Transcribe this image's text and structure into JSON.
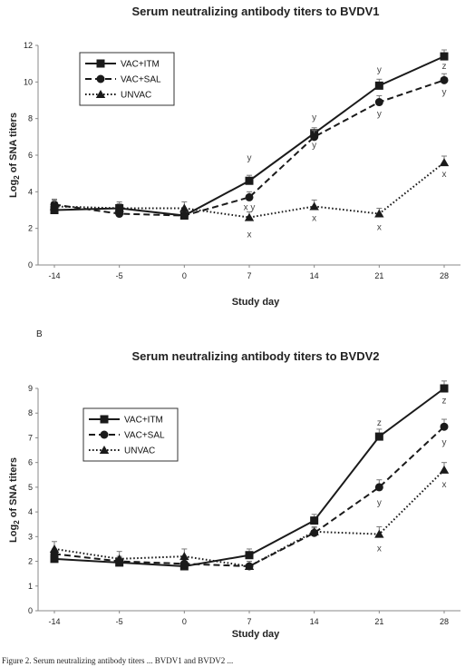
{
  "caption_fragment": "Figure 2. Serum neutralizing antibody titers ... BVDV1 and BVDV2 ...",
  "chart_data": [
    {
      "type": "line",
      "panel": "",
      "title": "Serum neutralizing antibody titers to BVDV1",
      "xlabel": "Study day",
      "ylabel": "Log2 of SNA titers",
      "ylabel_main": "Log",
      "ylabel_sub": "2",
      "ylabel_rest": " of SNA titers",
      "x": [
        -14,
        -5,
        0,
        7,
        14,
        21,
        28
      ],
      "x_tick_labels": [
        "-14",
        "-5",
        "0",
        "7",
        "14",
        "21",
        "28"
      ],
      "ylim": [
        0,
        12
      ],
      "y_ticks": [
        0,
        2,
        4,
        6,
        8,
        10,
        12
      ],
      "legend_position": "top-left",
      "series": [
        {
          "name": "VAC+ITM",
          "marker": "square",
          "line": "solid",
          "values": [
            3.0,
            3.1,
            2.7,
            4.6,
            7.2,
            9.8,
            11.4
          ],
          "errors": [
            0.25,
            0.25,
            0.2,
            0.3,
            0.3,
            0.35,
            0.35
          ]
        },
        {
          "name": "VAC+SAL",
          "marker": "circle",
          "line": "dashed",
          "values": [
            3.3,
            2.8,
            2.7,
            3.7,
            7.0,
            8.9,
            10.1
          ],
          "errors": [
            0.3,
            0.25,
            0.2,
            0.3,
            0.35,
            0.35,
            0.35
          ]
        },
        {
          "name": "UNVAC",
          "marker": "triangle",
          "line": "dotted",
          "values": [
            3.2,
            3.1,
            3.1,
            2.6,
            3.2,
            2.8,
            5.6
          ],
          "errors": [
            0.35,
            0.35,
            0.35,
            0.3,
            0.35,
            0.3,
            0.35
          ]
        }
      ],
      "annotations": [
        {
          "x": 7,
          "y": 5.9,
          "text": "y"
        },
        {
          "x": 7,
          "y": 3.2,
          "text": "x y"
        },
        {
          "x": 7,
          "y": 1.7,
          "text": "x"
        },
        {
          "x": 14,
          "y": 8.1,
          "text": "y"
        },
        {
          "x": 14,
          "y": 6.6,
          "text": "y"
        },
        {
          "x": 14,
          "y": 2.6,
          "text": "x"
        },
        {
          "x": 21,
          "y": 10.7,
          "text": "y"
        },
        {
          "x": 21,
          "y": 8.3,
          "text": "y"
        },
        {
          "x": 21,
          "y": 2.1,
          "text": "x"
        },
        {
          "x": 28,
          "y": 10.9,
          "text": "z"
        },
        {
          "x": 28,
          "y": 9.5,
          "text": "y"
        },
        {
          "x": 28,
          "y": 5.0,
          "text": "x"
        }
      ]
    },
    {
      "type": "line",
      "panel": "B",
      "title": "Serum neutralizing antibody titers to BVDV2",
      "xlabel": "Study day",
      "ylabel": "Log2 of SNA titers",
      "ylabel_main": "Log",
      "ylabel_sub": "2",
      "ylabel_rest": " of SNA titers",
      "x": [
        -14,
        -5,
        0,
        7,
        14,
        21,
        28
      ],
      "x_tick_labels": [
        "-14",
        "-5",
        "0",
        "7",
        "14",
        "21",
        "28"
      ],
      "ylim": [
        0,
        9
      ],
      "y_ticks": [
        0,
        1,
        2,
        3,
        4,
        5,
        6,
        7,
        8,
        9
      ],
      "legend_position": "top-left",
      "series": [
        {
          "name": "VAC+ITM",
          "marker": "square",
          "line": "solid",
          "values": [
            2.1,
            1.95,
            1.8,
            2.25,
            3.65,
            7.05,
            9.0
          ],
          "errors": [
            0.2,
            0.2,
            0.15,
            0.25,
            0.25,
            0.3,
            0.3
          ]
        },
        {
          "name": "VAC+SAL",
          "marker": "circle",
          "line": "dashed",
          "values": [
            2.3,
            2.0,
            1.9,
            1.8,
            3.15,
            5.0,
            7.45
          ],
          "errors": [
            0.2,
            0.2,
            0.2,
            0.2,
            0.2,
            0.3,
            0.3
          ]
        },
        {
          "name": "UNVAC",
          "marker": "triangle",
          "line": "dotted",
          "values": [
            2.5,
            2.1,
            2.2,
            1.8,
            3.2,
            3.1,
            5.7
          ],
          "errors": [
            0.3,
            0.3,
            0.3,
            0.2,
            0.2,
            0.3,
            0.3
          ]
        }
      ],
      "annotations": [
        {
          "x": 21,
          "y": 7.65,
          "text": "z"
        },
        {
          "x": 21,
          "y": 4.4,
          "text": "y"
        },
        {
          "x": 21,
          "y": 2.55,
          "text": "x"
        },
        {
          "x": 28,
          "y": 8.55,
          "text": "z"
        },
        {
          "x": 28,
          "y": 6.85,
          "text": "y"
        },
        {
          "x": 28,
          "y": 5.15,
          "text": "x"
        }
      ]
    }
  ]
}
